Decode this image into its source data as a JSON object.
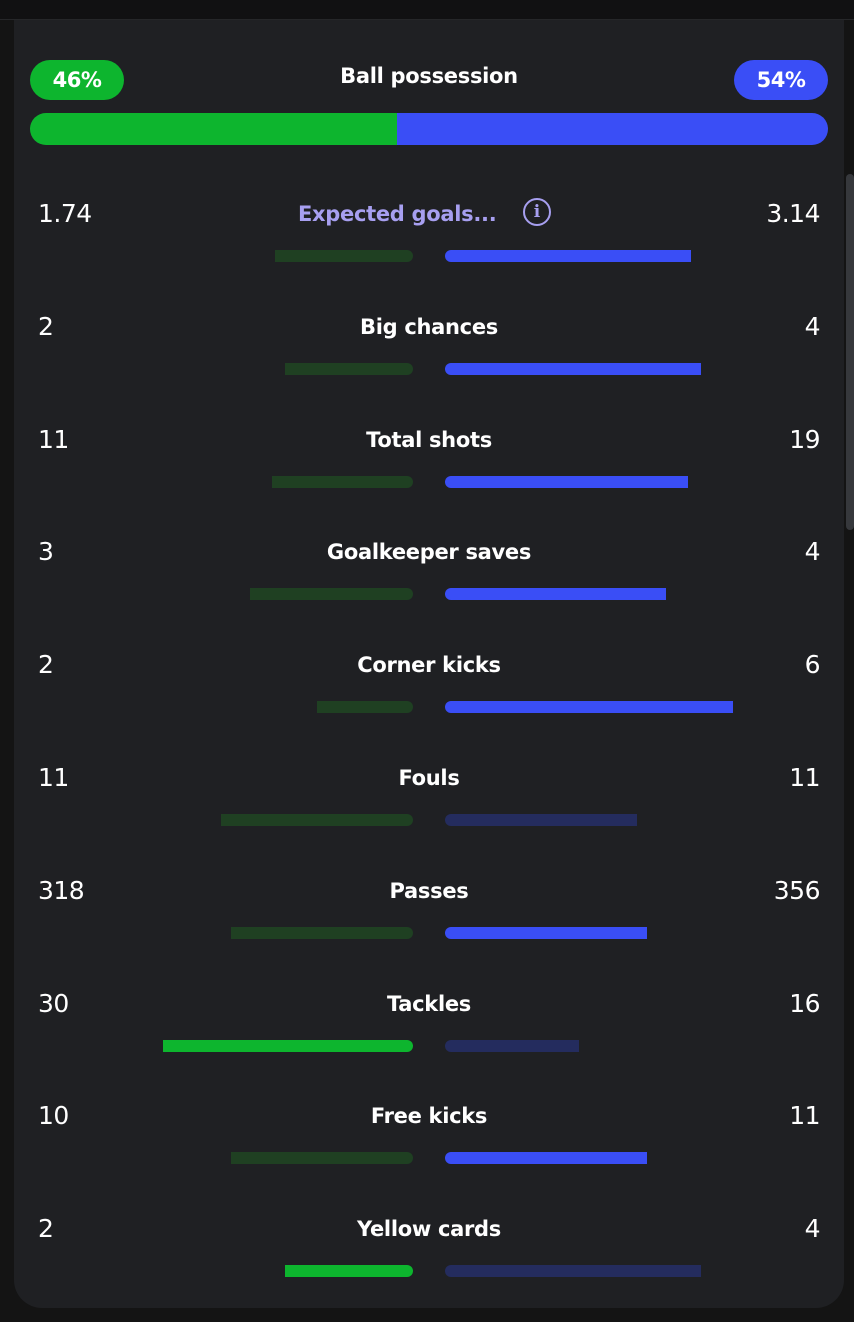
{
  "colors": {
    "home_win": "#0db52e",
    "home_lose": "#1f4022",
    "away_win": "#3a4ef6",
    "away_lose": "#242c5e",
    "link": "#a79ff0"
  },
  "possession": {
    "label": "Ball possession",
    "home_text": "46%",
    "away_text": "54%",
    "home_share": 0.46
  },
  "stats": [
    {
      "label": "Expected goals...",
      "home": "1.74",
      "away": "3.14",
      "home_fill": 0.43,
      "away_fill": 0.77,
      "home_leads": false,
      "away_leads": true,
      "has_info": true
    },
    {
      "label": "Big chances",
      "home": "2",
      "away": "4",
      "home_fill": 0.4,
      "away_fill": 0.8,
      "home_leads": false,
      "away_leads": true
    },
    {
      "label": "Total shots",
      "home": "11",
      "away": "19",
      "home_fill": 0.44,
      "away_fill": 0.76,
      "home_leads": false,
      "away_leads": true
    },
    {
      "label": "Goalkeeper saves",
      "home": "3",
      "away": "4",
      "home_fill": 0.51,
      "away_fill": 0.69,
      "home_leads": false,
      "away_leads": true
    },
    {
      "label": "Corner kicks",
      "home": "2",
      "away": "6",
      "home_fill": 0.3,
      "away_fill": 0.9,
      "home_leads": false,
      "away_leads": true
    },
    {
      "label": "Fouls",
      "home": "11",
      "away": "11",
      "home_fill": 0.6,
      "away_fill": 0.6,
      "home_leads": false,
      "away_leads": false
    },
    {
      "label": "Passes",
      "home": "318",
      "away": "356",
      "home_fill": 0.57,
      "away_fill": 0.63,
      "home_leads": false,
      "away_leads": true
    },
    {
      "label": "Tackles",
      "home": "30",
      "away": "16",
      "home_fill": 0.78,
      "away_fill": 0.42,
      "home_leads": true,
      "away_leads": false
    },
    {
      "label": "Free kicks",
      "home": "10",
      "away": "11",
      "home_fill": 0.57,
      "away_fill": 0.63,
      "home_leads": false,
      "away_leads": true
    },
    {
      "label": "Yellow cards",
      "home": "2",
      "away": "4",
      "home_fill": 0.4,
      "away_fill": 0.8,
      "home_leads": true,
      "away_leads": false
    }
  ]
}
